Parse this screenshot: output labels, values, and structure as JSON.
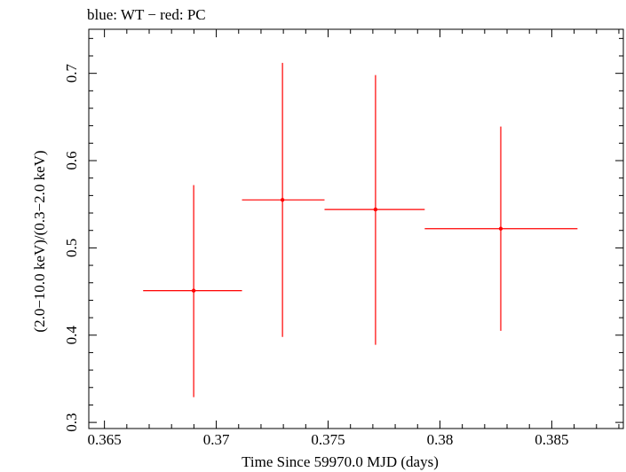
{
  "chart_data": {
    "type": "scatter",
    "title": "blue: WT − red: PC",
    "xlabel": "Time Since 59970.0 MJD (days)",
    "ylabel": "(2.0−10.0 keV)/(0.3−2.0 keV)",
    "xlim": [
      0.3643,
      0.3882
    ],
    "ylim": [
      0.293,
      0.7505
    ],
    "x_ticks": [
      0.365,
      0.37,
      0.375,
      0.38,
      0.385
    ],
    "x_tick_labels": [
      "0.365",
      "0.37",
      "0.375",
      "0.38",
      "0.385"
    ],
    "y_ticks": [
      0.3,
      0.4,
      0.5,
      0.6,
      0.7
    ],
    "y_tick_labels": [
      "0.3",
      "0.4",
      "0.5",
      "0.6",
      "0.7"
    ],
    "grid": false,
    "series": [
      {
        "color": "#ff0000",
        "points": [
          {
            "x": 0.36899,
            "y": 0.451,
            "xlo": 0.36673,
            "xhi": 0.37115,
            "ylo": 0.329,
            "yhi": 0.572
          },
          {
            "x": 0.37296,
            "y": 0.555,
            "xlo": 0.37115,
            "xhi": 0.37484,
            "ylo": 0.398,
            "yhi": 0.712
          },
          {
            "x": 0.37712,
            "y": 0.544,
            "xlo": 0.37484,
            "xhi": 0.37932,
            "ylo": 0.389,
            "yhi": 0.698
          },
          {
            "x": 0.38272,
            "y": 0.522,
            "xlo": 0.37932,
            "xhi": 0.38615,
            "ylo": 0.405,
            "yhi": 0.639
          }
        ]
      }
    ]
  }
}
